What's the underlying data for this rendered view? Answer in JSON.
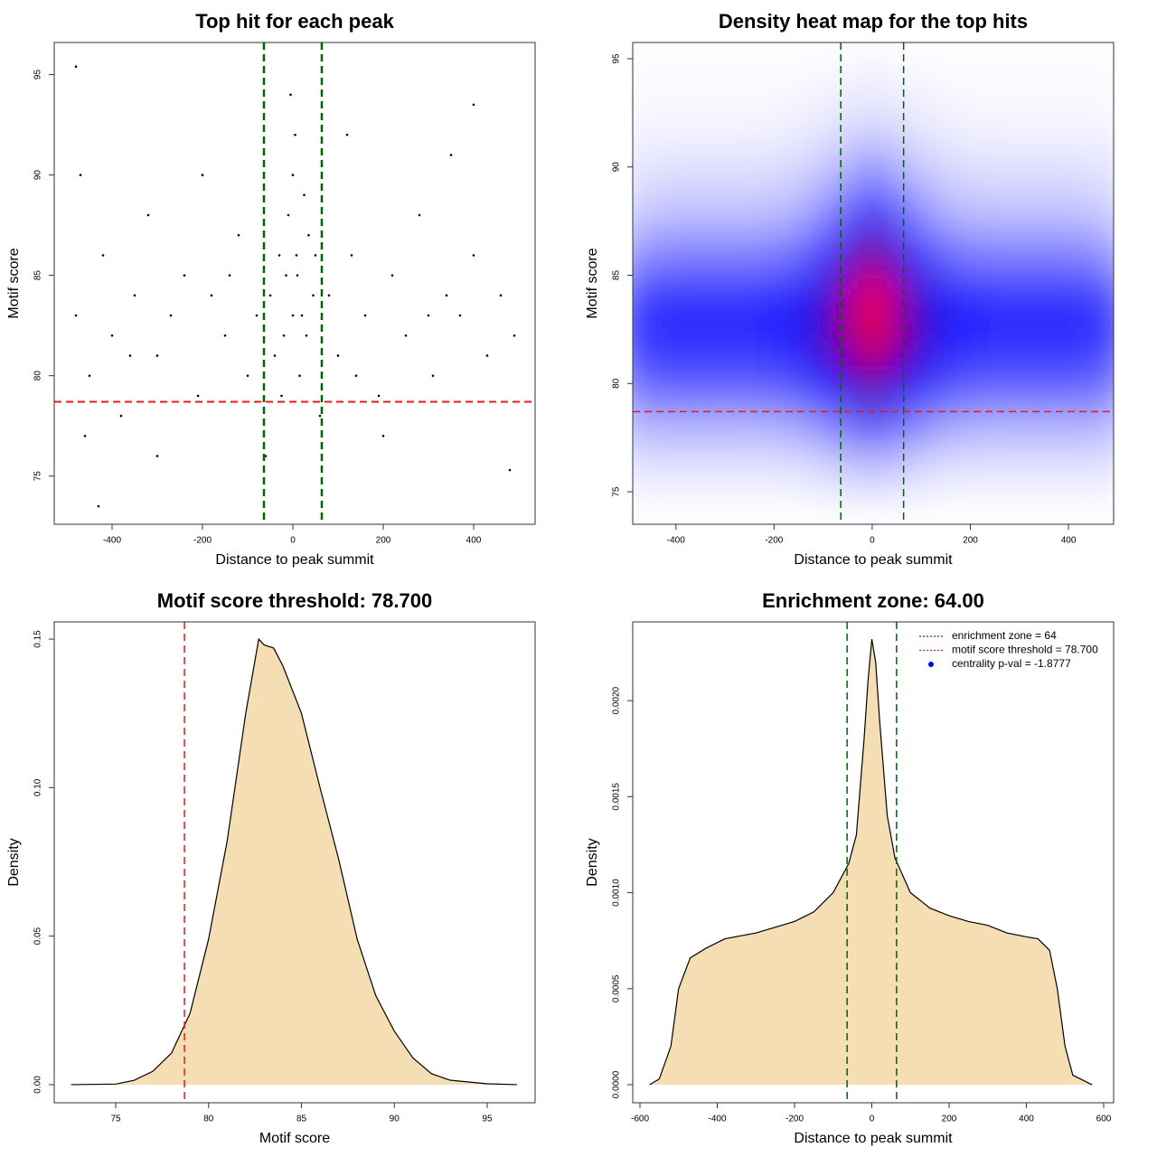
{
  "chart_data": [
    {
      "type": "scatter",
      "title": "Top hit for each peak",
      "xlabel": "Distance to peak summit",
      "ylabel": "Motif score",
      "xlim": [
        -528,
        536
      ],
      "ylim": [
        72.6,
        96.6
      ],
      "xticks": [
        -400,
        -200,
        0,
        200,
        400
      ],
      "yticks": [
        75,
        80,
        85,
        90,
        95
      ],
      "color": "#000000",
      "x": [
        -50,
        -30,
        -10,
        0,
        10,
        20,
        35,
        -20,
        5,
        -5,
        15,
        -40,
        45,
        25,
        -15,
        0,
        8,
        -25,
        30,
        50,
        -480,
        -450,
        -420,
        -400,
        -380,
        -350,
        -320,
        -300,
        -270,
        -240,
        -210,
        -180,
        -150,
        -120,
        -100,
        -80,
        80,
        100,
        130,
        160,
        190,
        220,
        250,
        280,
        310,
        340,
        370,
        400,
        430,
        460,
        490,
        -470,
        -460,
        -300,
        200,
        350,
        -200,
        120,
        400,
        -480,
        -430,
        480,
        -60,
        60,
        -360,
        300,
        -140,
        140
      ],
      "y": [
        84,
        86,
        88,
        90,
        85,
        83,
        87,
        82,
        92,
        94,
        80,
        81,
        84,
        89,
        85,
        83,
        86,
        79,
        82,
        86,
        83,
        80,
        86,
        82,
        78,
        84,
        88,
        81,
        83,
        85,
        79,
        84,
        82,
        87,
        80,
        83,
        84,
        81,
        86,
        83,
        79,
        85,
        82,
        88,
        80,
        84,
        83,
        86,
        81,
        84,
        82,
        90,
        77,
        76,
        77,
        91,
        90,
        92,
        93.5,
        95.4,
        73.5,
        75.3,
        76,
        78,
        81,
        83,
        85,
        80
      ],
      "vlines": {
        "values": [
          -64,
          64
        ],
        "color": "#006400"
      },
      "hlines": {
        "values": [
          78.7
        ],
        "color": "#e41a1c"
      }
    },
    {
      "type": "heatmap",
      "title": "Density heat map for the top hits",
      "xlabel": "Distance to peak summit",
      "ylabel": "Motif score",
      "xlim": [
        -488,
        492
      ],
      "ylim": [
        73.5,
        95.75
      ],
      "xticks": [
        -400,
        -200,
        0,
        200,
        400
      ],
      "yticks": [
        75,
        80,
        85,
        90,
        95
      ],
      "colors": [
        "#ffffff",
        "#0000ff",
        "#ff0000"
      ],
      "x": [
        -480,
        -400,
        -320,
        -240,
        -160,
        -80,
        0,
        80,
        160,
        240,
        320,
        400,
        480
      ],
      "y": [
        76,
        78,
        80,
        82,
        84,
        86,
        88,
        90,
        92,
        94
      ],
      "values": [
        [
          0.05,
          0.05,
          0.05,
          0.05,
          0.05,
          0.08,
          0.12,
          0.08,
          0.05,
          0.05,
          0.05,
          0.05,
          0.05
        ],
        [
          0.15,
          0.15,
          0.15,
          0.15,
          0.17,
          0.25,
          0.35,
          0.25,
          0.17,
          0.15,
          0.15,
          0.15,
          0.15
        ],
        [
          0.3,
          0.32,
          0.32,
          0.32,
          0.35,
          0.5,
          0.7,
          0.5,
          0.35,
          0.32,
          0.32,
          0.32,
          0.3
        ],
        [
          0.4,
          0.42,
          0.42,
          0.42,
          0.45,
          0.65,
          0.95,
          0.65,
          0.45,
          0.42,
          0.42,
          0.42,
          0.4
        ],
        [
          0.38,
          0.4,
          0.4,
          0.4,
          0.43,
          0.62,
          1.0,
          0.62,
          0.43,
          0.4,
          0.4,
          0.4,
          0.38
        ],
        [
          0.22,
          0.25,
          0.25,
          0.25,
          0.28,
          0.45,
          0.75,
          0.45,
          0.28,
          0.25,
          0.25,
          0.25,
          0.22
        ],
        [
          0.1,
          0.12,
          0.12,
          0.12,
          0.14,
          0.25,
          0.45,
          0.25,
          0.14,
          0.12,
          0.12,
          0.12,
          0.1
        ],
        [
          0.05,
          0.06,
          0.06,
          0.06,
          0.07,
          0.12,
          0.22,
          0.12,
          0.07,
          0.06,
          0.06,
          0.06,
          0.05
        ],
        [
          0.02,
          0.02,
          0.02,
          0.02,
          0.03,
          0.05,
          0.08,
          0.05,
          0.03,
          0.02,
          0.02,
          0.02,
          0.02
        ],
        [
          0.01,
          0.01,
          0.01,
          0.01,
          0.01,
          0.02,
          0.03,
          0.02,
          0.01,
          0.01,
          0.01,
          0.01,
          0.01
        ]
      ],
      "vlines": {
        "values": [
          -64,
          64
        ],
        "color": "#006400"
      },
      "hlines": {
        "values": [
          78.7
        ],
        "color": "#e41a1c"
      }
    },
    {
      "type": "density",
      "title": "Motif score threshold: 78.700",
      "xlabel": "Motif score",
      "ylabel": "Density",
      "xlim": [
        71.69,
        97.58
      ],
      "ylim": [
        -0.0061,
        0.1558
      ],
      "xticks": [
        75,
        80,
        85,
        90,
        95
      ],
      "yticks": [
        {
          "value": 0,
          "label": "0.00"
        },
        {
          "value": 0.05,
          "label": "0.05"
        },
        {
          "value": 0.1,
          "label": "0.10"
        },
        {
          "value": 0.15,
          "label": "0.15"
        }
      ],
      "color": "#f5deb3",
      "x": [
        72.6,
        75,
        76,
        77,
        78,
        79,
        80,
        81,
        82,
        82.7,
        83,
        83.5,
        84,
        85,
        86,
        87,
        88,
        89,
        90,
        91,
        92,
        93,
        94,
        95,
        96.6
      ],
      "y": [
        0,
        0.0002,
        0.0015,
        0.0045,
        0.0106,
        0.024,
        0.049,
        0.082,
        0.125,
        0.15,
        0.148,
        0.147,
        0.141,
        0.125,
        0.1,
        0.076,
        0.049,
        0.03,
        0.018,
        0.009,
        0.0037,
        0.0015,
        0.0009,
        0.0003,
        0
      ],
      "vlines": {
        "values": [
          78.7
        ],
        "color": "#e41a1c"
      }
    },
    {
      "type": "density",
      "title": "Enrichment zone: 64.00",
      "xlabel": "Distance to peak summit",
      "ylabel": "Density",
      "xlim": [
        -618.7,
        625.7
      ],
      "ylim": [
        -9.4e-05,
        0.00241
      ],
      "xticks": [
        -600,
        -400,
        -200,
        0,
        200,
        400,
        600
      ],
      "yticks": [
        {
          "value": 0,
          "label": "0.0000"
        },
        {
          "value": 0.0005,
          "label": "0.0005"
        },
        {
          "value": 0.001,
          "label": "0.0010"
        },
        {
          "value": 0.0015,
          "label": "0.0015"
        },
        {
          "value": 0.002,
          "label": "0.0020"
        }
      ],
      "color": "#f5deb3",
      "x": [
        -575,
        -550,
        -520,
        -500,
        -470,
        -430,
        -380,
        -300,
        -250,
        -200,
        -150,
        -100,
        -60,
        -40,
        -20,
        -10,
        0,
        10,
        20,
        40,
        60,
        100,
        150,
        200,
        250,
        300,
        350,
        400,
        430,
        460,
        480,
        500,
        520,
        570
      ],
      "y": [
        0,
        3e-05,
        0.0002,
        0.0005,
        0.00066,
        0.00071,
        0.00076,
        0.00079,
        0.00082,
        0.00085,
        0.0009,
        0.001,
        0.00115,
        0.0013,
        0.0018,
        0.0021,
        0.00232,
        0.0022,
        0.0019,
        0.0014,
        0.00118,
        0.001,
        0.00092,
        0.00088,
        0.00085,
        0.00083,
        0.00079,
        0.00077,
        0.00076,
        0.0007,
        0.0005,
        0.0002,
        5e-05,
        0
      ],
      "vlines": {
        "values": [
          -64,
          64
        ],
        "color": "#006400"
      },
      "legend": [
        {
          "label": "enrichment zone = 64",
          "color": "#006400",
          "style": "line"
        },
        {
          "label": "motif score threshold = 78.700",
          "color": "#e41a1c",
          "style": "line"
        },
        {
          "label": "centrality p-val = -1.8777",
          "color": "#0000ff",
          "style": "point"
        }
      ]
    }
  ]
}
